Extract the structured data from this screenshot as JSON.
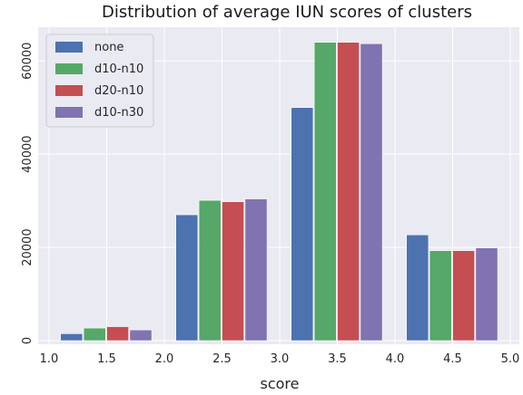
{
  "chart_data": {
    "type": "bar",
    "title": "Distribution of average IUN scores of clusters",
    "xlabel": "score",
    "ylabel": "",
    "xlim": [
      1.0,
      5.0
    ],
    "ylim": [
      0,
      67000
    ],
    "xticks": [
      1.0,
      1.5,
      2.0,
      2.5,
      3.0,
      3.5,
      4.0,
      4.5,
      5.0
    ],
    "xtick_labels": [
      "1.0",
      "1.5",
      "2.0",
      "2.5",
      "3.0",
      "3.5",
      "4.0",
      "4.5",
      "5.0"
    ],
    "yticks": [
      0,
      20000,
      40000,
      60000
    ],
    "ytick_labels": [
      "0",
      "20000",
      "40000",
      "60000"
    ],
    "bins": [
      [
        1.0,
        2.0
      ],
      [
        2.0,
        3.0
      ],
      [
        3.0,
        4.0
      ],
      [
        4.0,
        5.0
      ]
    ],
    "grid": true,
    "legend_position": "top-left",
    "series": [
      {
        "name": "none",
        "color": "#4c72b0",
        "values": [
          1500,
          27000,
          50000,
          22700
        ]
      },
      {
        "name": "d10-n10",
        "color": "#55a868",
        "values": [
          2700,
          30100,
          64000,
          19300
        ]
      },
      {
        "name": "d20-n10",
        "color": "#c44e52",
        "values": [
          3000,
          29800,
          64000,
          19300
        ]
      },
      {
        "name": "d10-n30",
        "color": "#8172b2",
        "values": [
          2300,
          30400,
          63700,
          19900
        ]
      }
    ]
  }
}
